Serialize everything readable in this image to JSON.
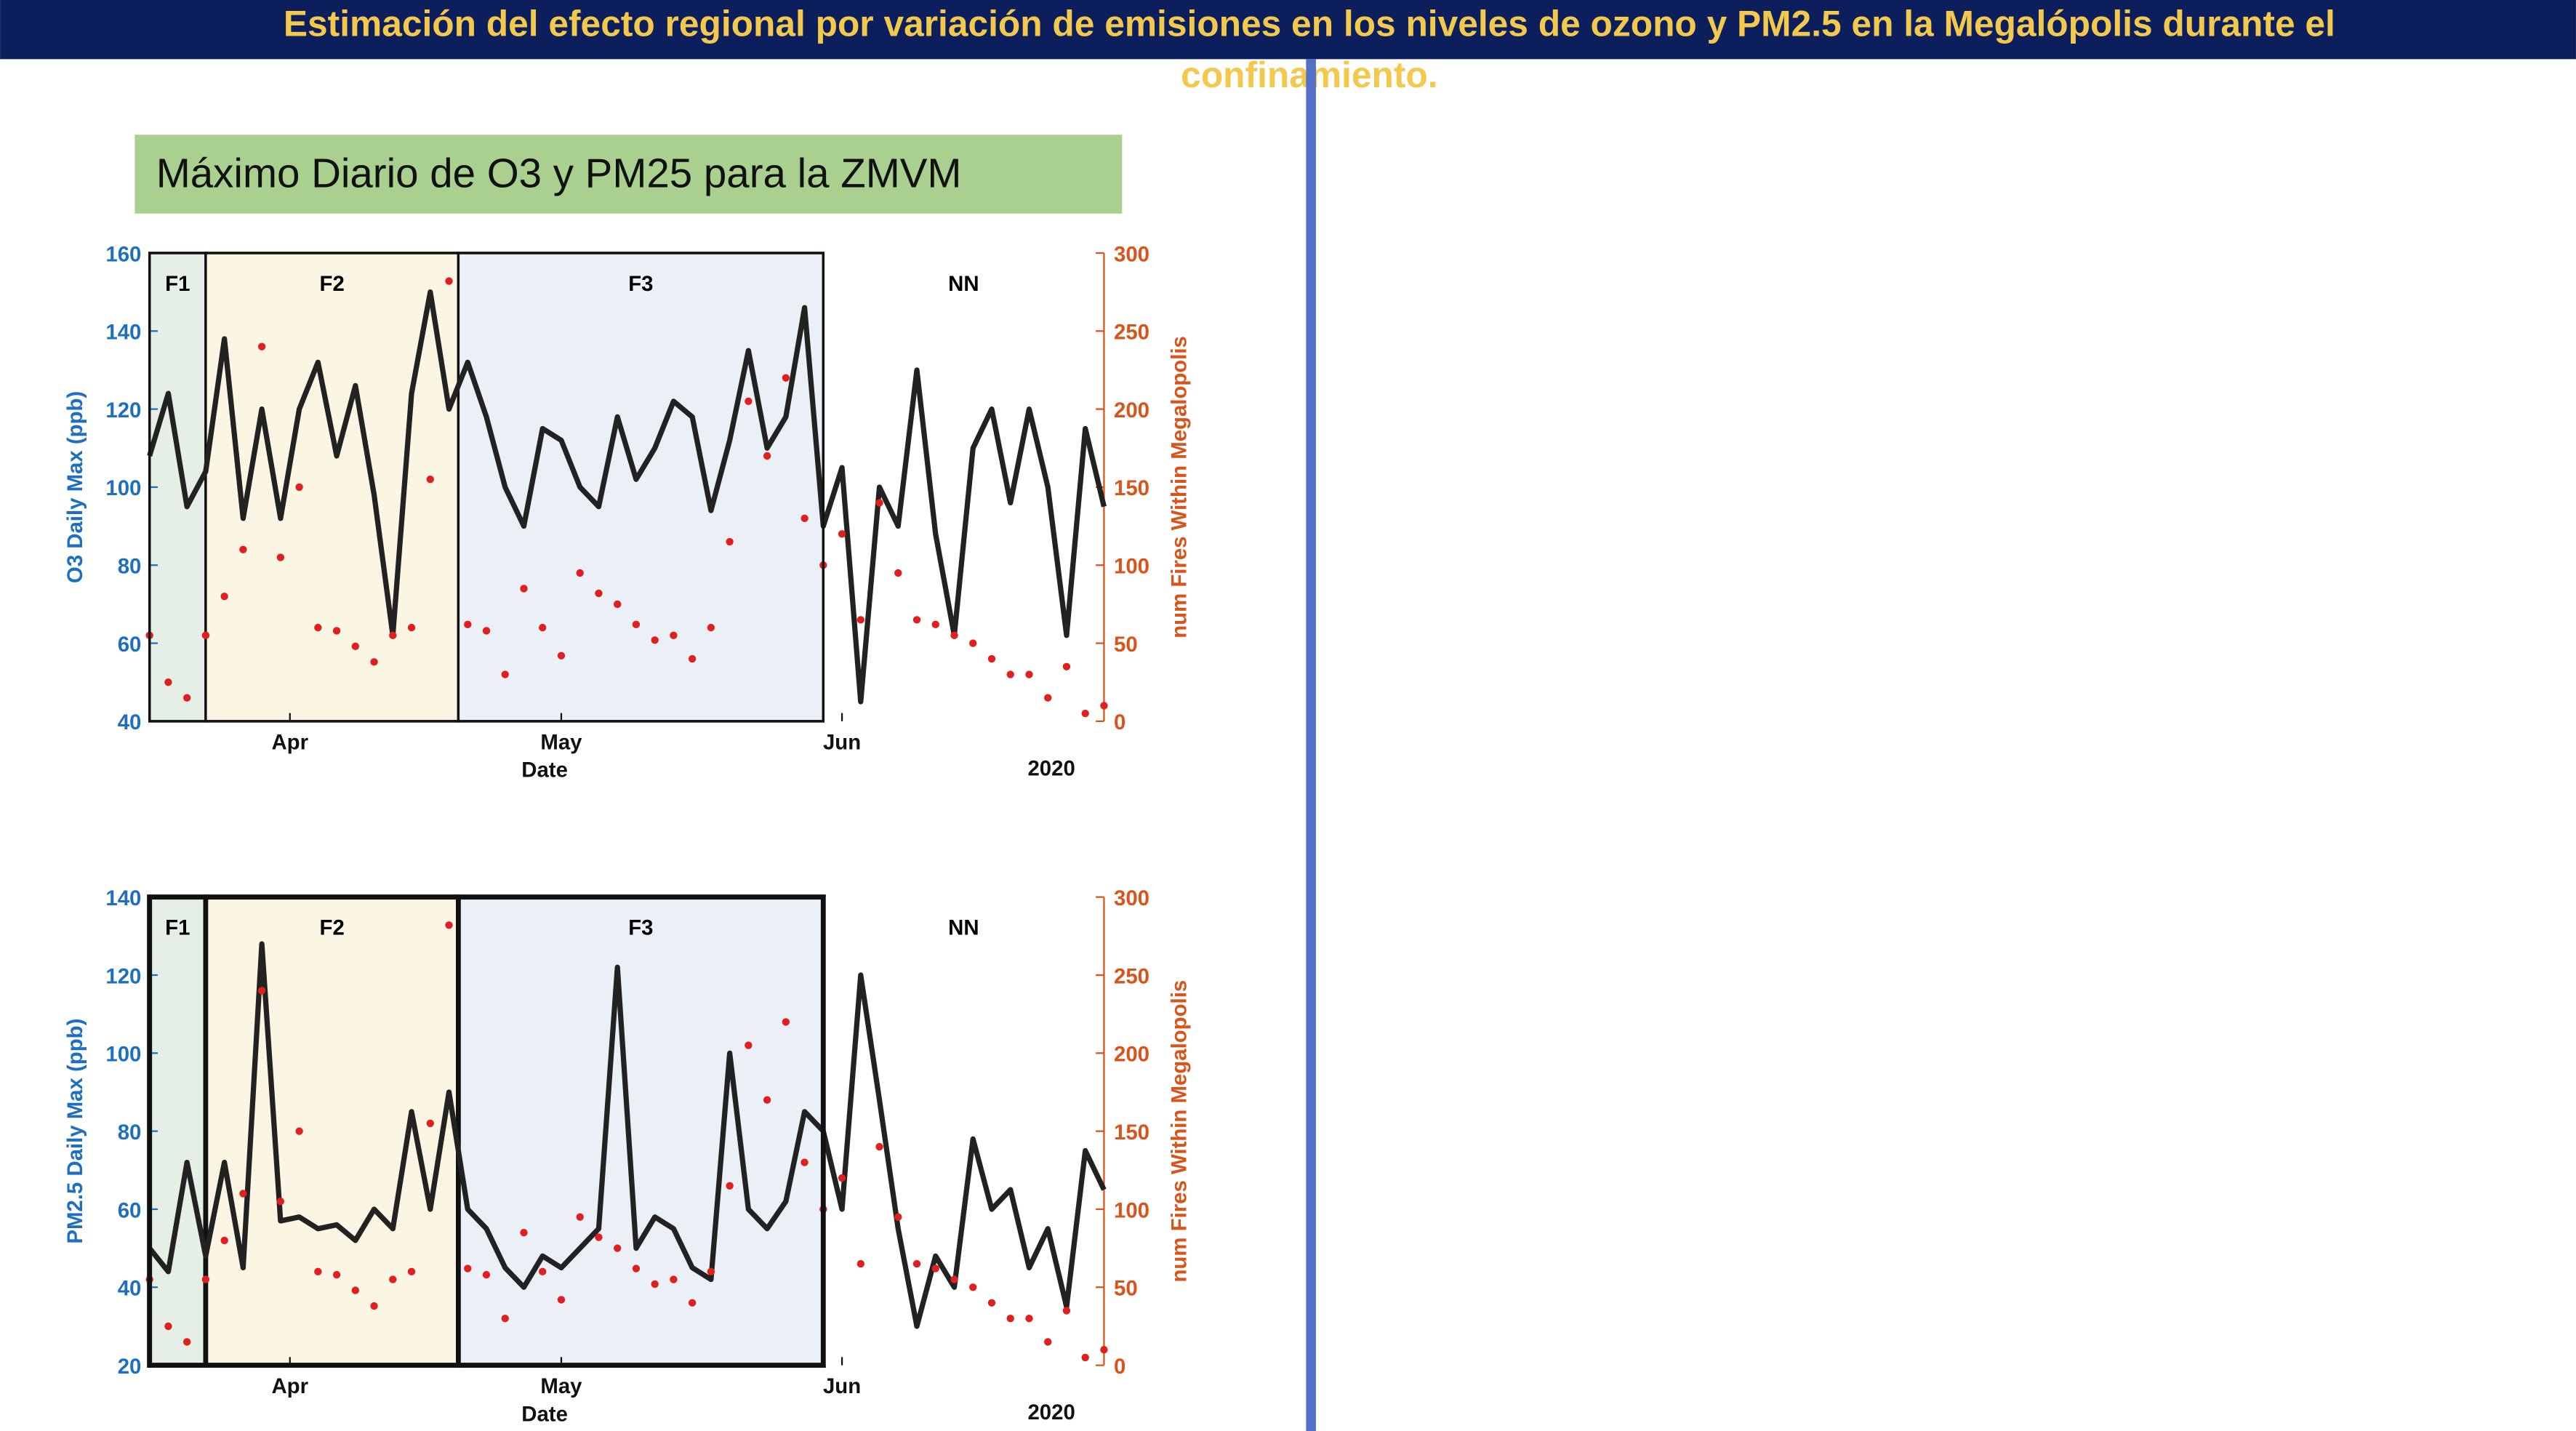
{
  "title_lines": [
    "Estimación del efecto regional por variación de emisiones en los niveles de ozono  y PM2.5 en la Megalópolis durante el",
    "confinamiento."
  ],
  "panel_title": "Máximo Diario de O3 y PM25 para la ZMVM",
  "chart_data": [
    {
      "type": "line",
      "ylabel": "O3 Daily Max (ppb)",
      "y2label": "num Fires Within Megalopolis",
      "xlabel": "Date",
      "year_label": "2020",
      "x": [
        0,
        2,
        4,
        6,
        8,
        10,
        12,
        14,
        16,
        18,
        20,
        22,
        24,
        26,
        28,
        30,
        32,
        34,
        36,
        38,
        40,
        42,
        44,
        46,
        48,
        50,
        52,
        54,
        56,
        58,
        60,
        62,
        64,
        66,
        68,
        70,
        72,
        74,
        76,
        78,
        80,
        82,
        84,
        86,
        88,
        90,
        92,
        94,
        96,
        98,
        100,
        102
      ],
      "xlim": [
        0,
        102
      ],
      "xticks": [
        {
          "value": 15,
          "label": "Apr"
        },
        {
          "value": 44,
          "label": "May"
        },
        {
          "value": 74,
          "label": "Jun"
        }
      ],
      "ylim": [
        40,
        160
      ],
      "yticks": [
        40,
        60,
        80,
        100,
        120,
        140,
        160
      ],
      "y2lim": [
        0,
        300
      ],
      "y2ticks": [
        0,
        50,
        100,
        150,
        200,
        250,
        300
      ],
      "phases": [
        {
          "label": "F1",
          "start": 0,
          "end": 6,
          "color": "#e6efe6"
        },
        {
          "label": "F2",
          "start": 6,
          "end": 33,
          "color": "#fbf5e3"
        },
        {
          "label": "F3",
          "start": 33,
          "end": 72,
          "color": "#eaf0f6"
        },
        {
          "label": "NN",
          "start": 72,
          "end": 102,
          "color": "#ffffff"
        }
      ],
      "series": [
        {
          "color": "#222222",
          "values": [
            108,
            124,
            95,
            104,
            138,
            92,
            120,
            92,
            120,
            132,
            108,
            126,
            98,
            62,
            124,
            150,
            120,
            132,
            118,
            100,
            90,
            115,
            112,
            100,
            95,
            118,
            102,
            110,
            122,
            118,
            94,
            112,
            135,
            110,
            118,
            146,
            90,
            105,
            45,
            100,
            90,
            130,
            88,
            62,
            110,
            120,
            96,
            120,
            100,
            62,
            115,
            95
          ]
        },
        {
          "color": "#e02020",
          "axis": "y2",
          "markers_only": true,
          "values": [
            55,
            25,
            15,
            55,
            80,
            110,
            240,
            105,
            150,
            60,
            58,
            48,
            38,
            55,
            60,
            155,
            282,
            62,
            58,
            30,
            85,
            60,
            42,
            95,
            82,
            75,
            62,
            52,
            55,
            40,
            60,
            115,
            205,
            170,
            220,
            130,
            100,
            120,
            65,
            140,
            95,
            65,
            62,
            55,
            50,
            40,
            30,
            30,
            15,
            35,
            5,
            10
          ]
        }
      ]
    },
    {
      "type": "line",
      "ylabel": "PM2.5 Daily Max (ppb)",
      "y2label": "num Fires Within Megalopolis",
      "xlabel": "Date",
      "year_label": "2020",
      "x": [
        0,
        2,
        4,
        6,
        8,
        10,
        12,
        14,
        16,
        18,
        20,
        22,
        24,
        26,
        28,
        30,
        32,
        34,
        36,
        38,
        40,
        42,
        44,
        46,
        48,
        50,
        52,
        54,
        56,
        58,
        60,
        62,
        64,
        66,
        68,
        70,
        72,
        74,
        76,
        78,
        80,
        82,
        84,
        86,
        88,
        90,
        92,
        94,
        96,
        98,
        100,
        102
      ],
      "xlim": [
        0,
        102
      ],
      "xticks": [
        {
          "value": 15,
          "label": "Apr"
        },
        {
          "value": 44,
          "label": "May"
        },
        {
          "value": 74,
          "label": "Jun"
        }
      ],
      "ylim": [
        20,
        140
      ],
      "yticks": [
        20,
        40,
        60,
        80,
        100,
        120,
        140
      ],
      "y2lim": [
        0,
        300
      ],
      "y2ticks": [
        0,
        50,
        100,
        150,
        200,
        250,
        300
      ],
      "phases": [
        {
          "label": "F1",
          "start": 0,
          "end": 6,
          "color": "#e6efe6"
        },
        {
          "label": "F2",
          "start": 6,
          "end": 33,
          "color": "#fbf5e3"
        },
        {
          "label": "F3",
          "start": 33,
          "end": 72,
          "color": "#eaf0f6"
        },
        {
          "label": "NN",
          "start": 72,
          "end": 102,
          "color": "#ffffff"
        }
      ],
      "series": [
        {
          "color": "#222222",
          "values": [
            50,
            44,
            72,
            48,
            72,
            45,
            128,
            57,
            58,
            55,
            56,
            52,
            60,
            55,
            85,
            60,
            90,
            60,
            55,
            45,
            40,
            48,
            45,
            50,
            55,
            122,
            50,
            58,
            55,
            45,
            42,
            100,
            60,
            55,
            62,
            85,
            80,
            60,
            120,
            88,
            55,
            30,
            48,
            40,
            78,
            60,
            65,
            45,
            55,
            35,
            75,
            65
          ]
        },
        {
          "color": "#e02020",
          "axis": "y2",
          "markers_only": true,
          "values": [
            55,
            25,
            15,
            55,
            80,
            110,
            240,
            105,
            150,
            60,
            58,
            48,
            38,
            55,
            60,
            155,
            282,
            62,
            58,
            30,
            85,
            60,
            42,
            95,
            82,
            75,
            62,
            52,
            55,
            40,
            60,
            115,
            205,
            170,
            220,
            130,
            100,
            120,
            65,
            140,
            95,
            65,
            62,
            55,
            50,
            40,
            30,
            30,
            15,
            35,
            5,
            10
          ]
        }
      ]
    }
  ]
}
